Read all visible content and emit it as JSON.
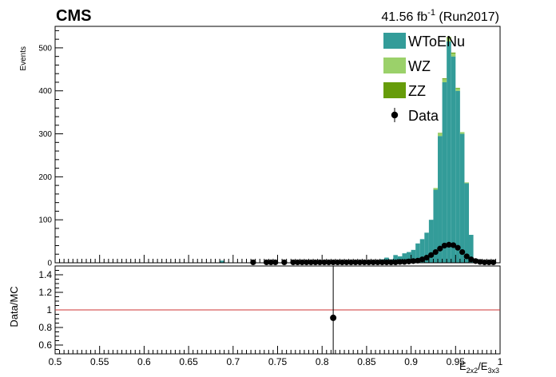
{
  "header": {
    "experiment": "CMS",
    "lumi_value": "41.56 fb",
    "lumi_exp": "-1",
    "run": " (Run2017)"
  },
  "chart_data": [
    {
      "type": "bar",
      "panel": "main",
      "stacked": true,
      "ylabel": "Events",
      "xlim": [
        0.5,
        1.0
      ],
      "ylim": [
        0,
        550
      ],
      "yticks": [
        0,
        100,
        200,
        300,
        400,
        500
      ],
      "bin_width": 0.005,
      "legend_position": "top-right",
      "series": [
        {
          "name": "WToENu",
          "color": "#339c99",
          "bins": [
            {
              "x": 0.685,
              "value": 5
            },
            {
              "x": 0.72,
              "value": 3
            },
            {
              "x": 0.775,
              "value": 2
            },
            {
              "x": 0.79,
              "value": 3
            },
            {
              "x": 0.805,
              "value": 2
            },
            {
              "x": 0.82,
              "value": 5
            },
            {
              "x": 0.84,
              "value": 2
            },
            {
              "x": 0.855,
              "value": 4
            },
            {
              "x": 0.865,
              "value": 8
            },
            {
              "x": 0.87,
              "value": 12
            },
            {
              "x": 0.875,
              "value": 8
            },
            {
              "x": 0.88,
              "value": 18
            },
            {
              "x": 0.885,
              "value": 15
            },
            {
              "x": 0.89,
              "value": 22
            },
            {
              "x": 0.895,
              "value": 25
            },
            {
              "x": 0.9,
              "value": 30
            },
            {
              "x": 0.905,
              "value": 45
            },
            {
              "x": 0.91,
              "value": 55
            },
            {
              "x": 0.915,
              "value": 70
            },
            {
              "x": 0.92,
              "value": 100
            },
            {
              "x": 0.925,
              "value": 170
            },
            {
              "x": 0.93,
              "value": 295
            },
            {
              "x": 0.935,
              "value": 420
            },
            {
              "x": 0.94,
              "value": 515
            },
            {
              "x": 0.945,
              "value": 480
            },
            {
              "x": 0.95,
              "value": 400
            },
            {
              "x": 0.955,
              "value": 300
            },
            {
              "x": 0.96,
              "value": 185
            },
            {
              "x": 0.965,
              "value": 65
            }
          ]
        },
        {
          "name": "WZ",
          "color": "#9bd16a",
          "bins": [
            {
              "x": 0.925,
              "value": 4
            },
            {
              "x": 0.93,
              "value": 6
            },
            {
              "x": 0.935,
              "value": 7
            },
            {
              "x": 0.94,
              "value": 8
            },
            {
              "x": 0.945,
              "value": 7
            },
            {
              "x": 0.95,
              "value": 6
            },
            {
              "x": 0.955,
              "value": 4
            },
            {
              "x": 0.96,
              "value": 2
            }
          ]
        },
        {
          "name": "ZZ",
          "color": "#669c0a",
          "bins": [
            {
              "x": 0.93,
              "value": 1
            },
            {
              "x": 0.935,
              "value": 2
            },
            {
              "x": 0.94,
              "value": 2
            },
            {
              "x": 0.945,
              "value": 2
            },
            {
              "x": 0.95,
              "value": 1
            }
          ]
        },
        {
          "name": "Data",
          "color": "#000000",
          "marker": "circle",
          "points": [
            {
              "x": 0.72,
              "y": 1
            },
            {
              "x": 0.735,
              "y": 1
            },
            {
              "x": 0.74,
              "y": 1
            },
            {
              "x": 0.745,
              "y": 1
            },
            {
              "x": 0.755,
              "y": 1
            },
            {
              "x": 0.765,
              "y": 1
            },
            {
              "x": 0.77,
              "y": 1
            },
            {
              "x": 0.775,
              "y": 1
            },
            {
              "x": 0.78,
              "y": 1
            },
            {
              "x": 0.785,
              "y": 1
            },
            {
              "x": 0.79,
              "y": 1
            },
            {
              "x": 0.795,
              "y": 1
            },
            {
              "x": 0.8,
              "y": 1
            },
            {
              "x": 0.805,
              "y": 1
            },
            {
              "x": 0.81,
              "y": 1
            },
            {
              "x": 0.815,
              "y": 1
            },
            {
              "x": 0.82,
              "y": 1
            },
            {
              "x": 0.825,
              "y": 1
            },
            {
              "x": 0.83,
              "y": 1
            },
            {
              "x": 0.835,
              "y": 1
            },
            {
              "x": 0.84,
              "y": 1
            },
            {
              "x": 0.845,
              "y": 1
            },
            {
              "x": 0.85,
              "y": 1
            },
            {
              "x": 0.855,
              "y": 1
            },
            {
              "x": 0.86,
              "y": 1
            },
            {
              "x": 0.865,
              "y": 1
            },
            {
              "x": 0.87,
              "y": 1
            },
            {
              "x": 0.875,
              "y": 1
            },
            {
              "x": 0.88,
              "y": 1
            },
            {
              "x": 0.885,
              "y": 2
            },
            {
              "x": 0.89,
              "y": 2
            },
            {
              "x": 0.895,
              "y": 3
            },
            {
              "x": 0.9,
              "y": 4
            },
            {
              "x": 0.905,
              "y": 5
            },
            {
              "x": 0.91,
              "y": 8
            },
            {
              "x": 0.915,
              "y": 12
            },
            {
              "x": 0.92,
              "y": 18
            },
            {
              "x": 0.925,
              "y": 25
            },
            {
              "x": 0.93,
              "y": 33
            },
            {
              "x": 0.935,
              "y": 40
            },
            {
              "x": 0.94,
              "y": 42
            },
            {
              "x": 0.945,
              "y": 41
            },
            {
              "x": 0.95,
              "y": 35
            },
            {
              "x": 0.955,
              "y": 25
            },
            {
              "x": 0.96,
              "y": 15
            },
            {
              "x": 0.965,
              "y": 8
            },
            {
              "x": 0.97,
              "y": 4
            },
            {
              "x": 0.975,
              "y": 2
            },
            {
              "x": 0.98,
              "y": 1
            },
            {
              "x": 0.985,
              "y": 1
            },
            {
              "x": 0.99,
              "y": 1
            }
          ]
        }
      ]
    },
    {
      "type": "scatter",
      "panel": "ratio",
      "ylabel": "Data/MC",
      "xlabel_main": "E",
      "xlabel_sub1": "2x2",
      "xlabel_mid": "/E",
      "xlabel_sub2": "3x3",
      "xlim": [
        0.5,
        1.0
      ],
      "ylim": [
        0.5,
        1.5
      ],
      "xticks": [
        "0.5",
        "0.55",
        "0.6",
        "0.65",
        "0.7",
        "0.75",
        "0.8",
        "0.85",
        "0.9",
        "0.95",
        "1"
      ],
      "yticks": [
        "0.6",
        "0.8",
        "1",
        "1.2",
        "1.4"
      ],
      "reference_line": {
        "y": 1.0,
        "color": "#cc3333"
      },
      "points": [
        {
          "x": 0.8125,
          "y": 0.91,
          "yerr_low": 0.0,
          "yerr_high": 0.0,
          "error_bar_full_range": true
        }
      ]
    }
  ]
}
